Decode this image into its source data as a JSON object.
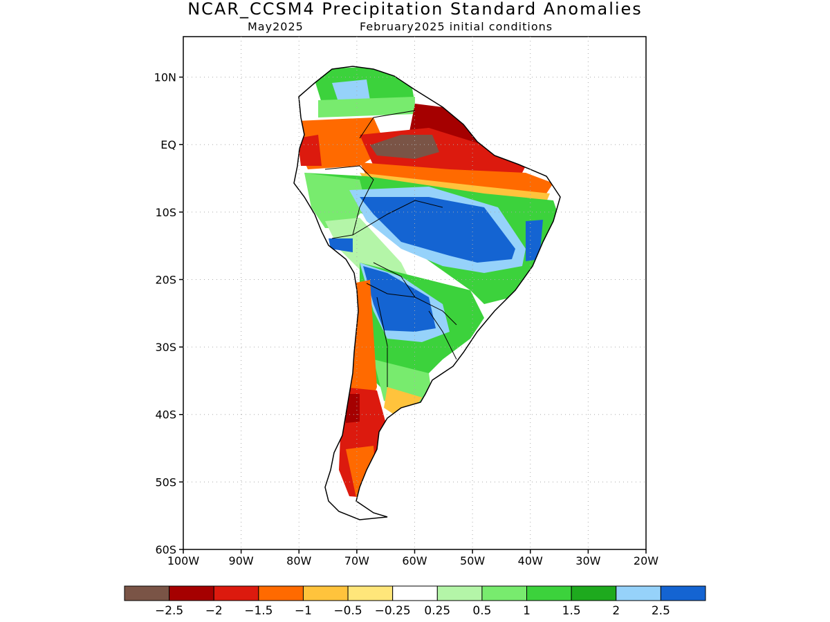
{
  "title": "NCAR_CCSM4 Precipitation Standard Anomalies",
  "subtitle_month": "May2025",
  "subtitle_init": "February2025 initial conditions",
  "axes": {
    "lat_labels": [
      "10N",
      "EQ",
      "10S",
      "20S",
      "30S",
      "40S",
      "50S",
      "60S"
    ],
    "lon_labels": [
      "100W",
      "90W",
      "80W",
      "70W",
      "60W",
      "50W",
      "40W",
      "30W",
      "20W"
    ],
    "lon_range": [
      -100,
      -20
    ],
    "lat_range": [
      -60,
      16
    ],
    "grid": "dotted"
  },
  "colorbar": {
    "colors": [
      "#7a5446",
      "#a50000",
      "#dc1a0e",
      "#ff6a00",
      "#ffc33c",
      "#ffe67a",
      "#ffffff",
      "#b4f5a8",
      "#78eb6e",
      "#3cd23c",
      "#1eaa1e",
      "#96d2fa",
      "#1464d2"
    ],
    "labels": [
      "−2.5",
      "−2",
      "−1.5",
      "−1",
      "−0.5",
      "−0.25",
      "0.25",
      "0.5",
      "1",
      "1.5",
      "2",
      "2.5"
    ]
  },
  "colors": {
    "land_outline": "#000000",
    "grid": "#aaaaaa"
  }
}
